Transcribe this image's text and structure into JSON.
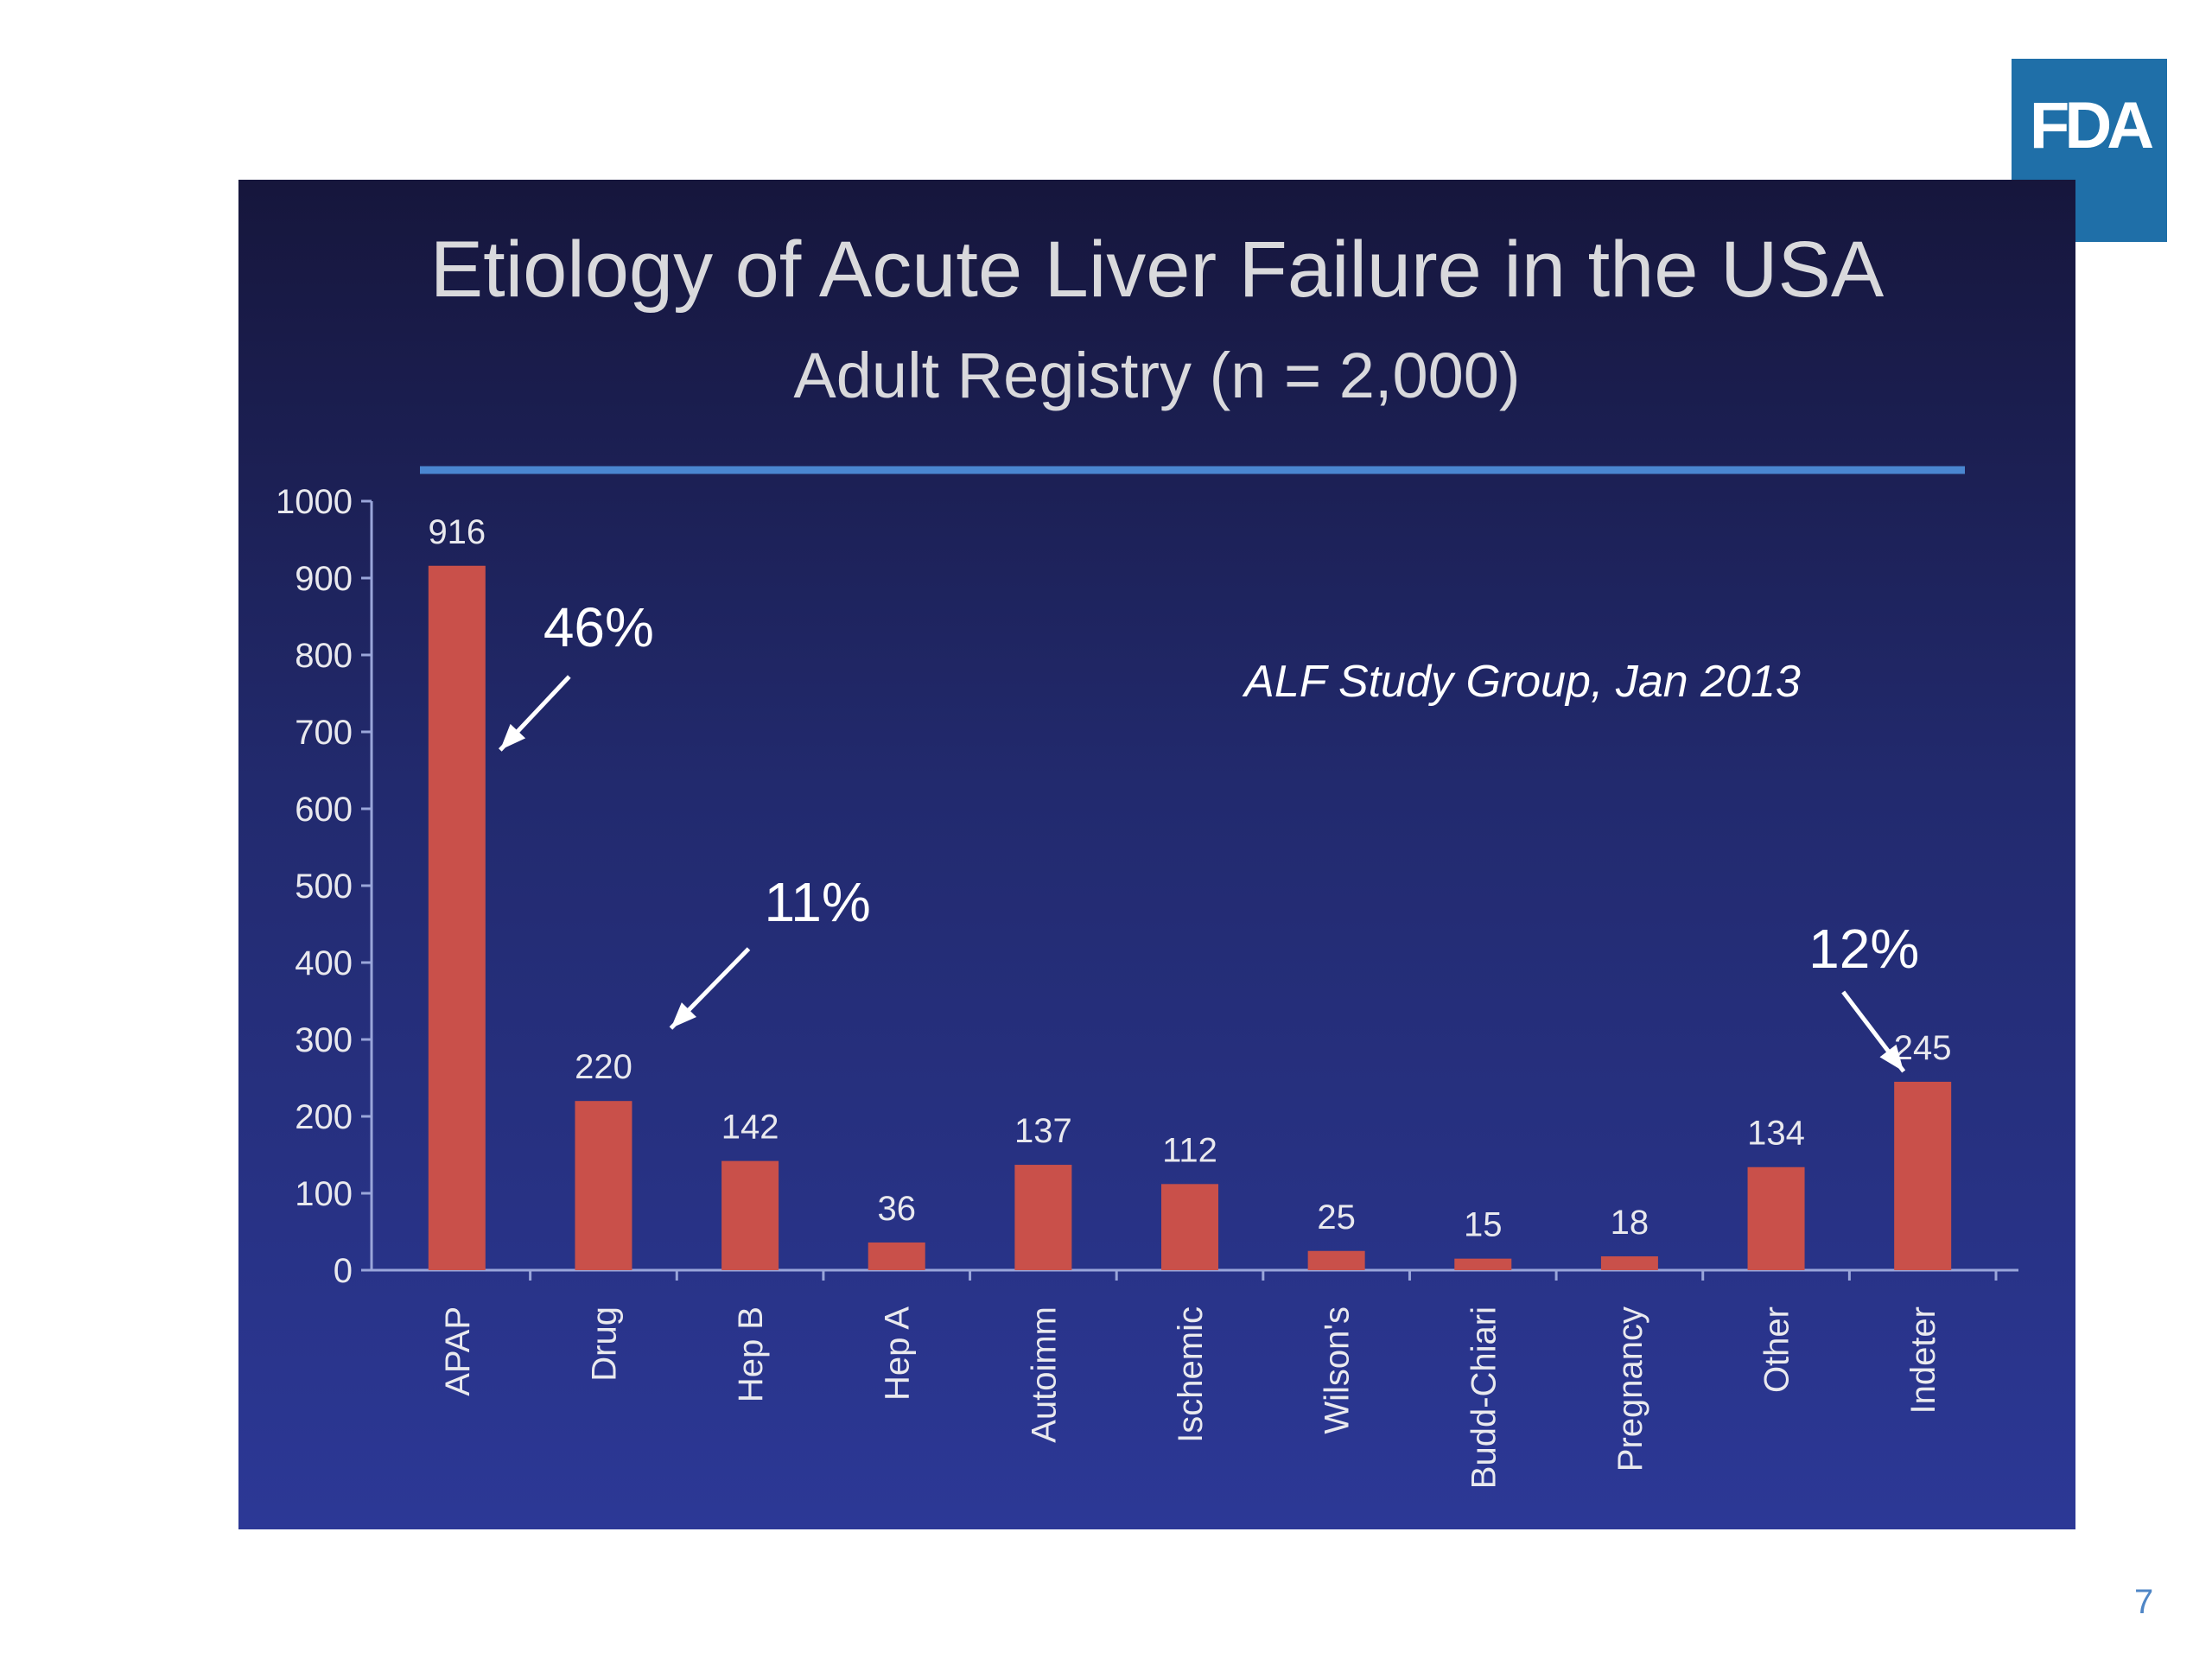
{
  "logo": {
    "text": "FDA",
    "color": "#1f6fa8"
  },
  "slide": {
    "title": "Etiology of Acute Liver Failure in the USA",
    "subtitle": "Adult Registry  (n = 2,000)"
  },
  "page_number": "7",
  "chart_data": {
    "type": "bar",
    "title": "Etiology of Acute Liver Failure in the USA",
    "subtitle": "Adult Registry  (n = 2,000)",
    "categories": [
      "APAP",
      "Drug",
      "Hep B",
      "Hep A",
      "Autoimm",
      "Ischemic",
      "Wilson's",
      "Budd-Chiari",
      "Pregnancy",
      "Other",
      "Indeter"
    ],
    "values": [
      916,
      220,
      142,
      36,
      137,
      112,
      25,
      15,
      18,
      134,
      245
    ],
    "ylim": [
      0,
      1000
    ],
    "yticks": [
      0,
      100,
      200,
      300,
      400,
      500,
      600,
      700,
      800,
      900,
      1000
    ],
    "xlabel": "",
    "ylabel": "",
    "grid": false,
    "bar_color": "#c9504a",
    "annotations": [
      {
        "text": "46%",
        "category": "APAP"
      },
      {
        "text": "11%",
        "category": "Drug"
      },
      {
        "text": "12%",
        "category": "Indeter"
      }
    ],
    "source_note": "ALF Study Group, Jan 2013"
  }
}
